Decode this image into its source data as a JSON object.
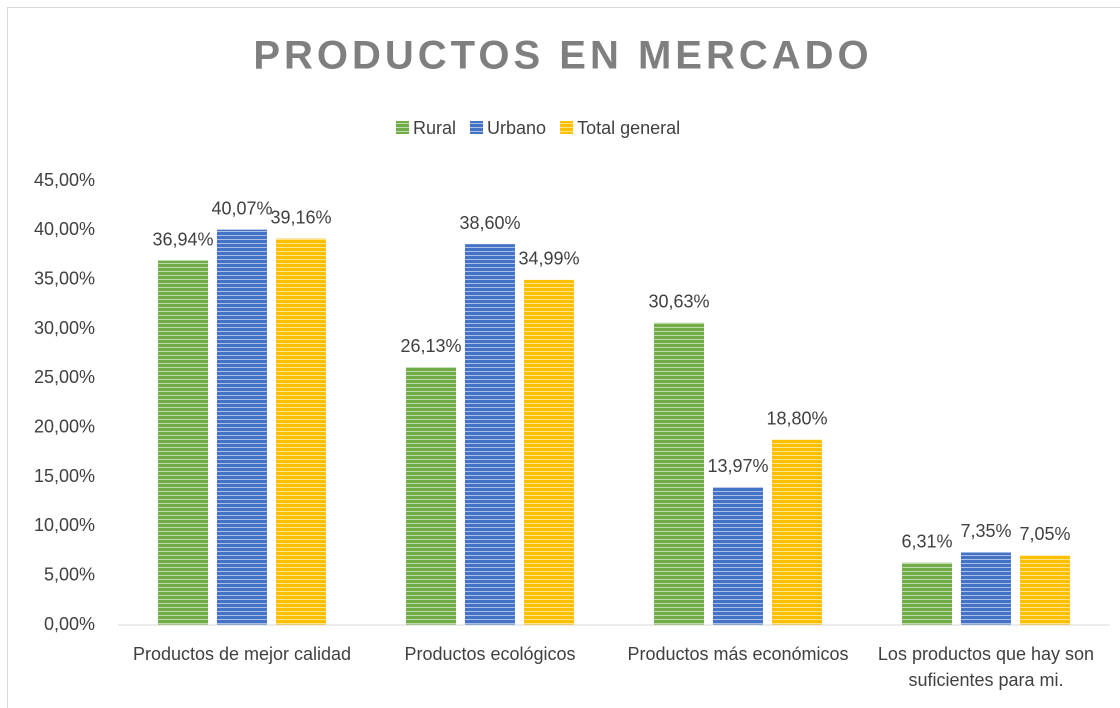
{
  "chart_data": {
    "type": "bar",
    "title": "PRODUCTOS EN MERCADO",
    "categories": [
      "Productos de mejor calidad",
      "Productos ecológicos",
      "Productos más económicos",
      "Los productos que hay son suficientes para mi."
    ],
    "series": [
      {
        "name": "Rural",
        "color": "#70ad47",
        "values": [
          36.94,
          26.13,
          30.63,
          6.31
        ],
        "value_labels": [
          "36,94%",
          "26,13%",
          "30,63%",
          "6,31%"
        ]
      },
      {
        "name": "Urbano",
        "color": "#4472c4",
        "values": [
          40.07,
          38.6,
          13.97,
          7.35
        ],
        "value_labels": [
          "40,07%",
          "38,60%",
          "13,97%",
          "7,35%"
        ]
      },
      {
        "name": "Total general",
        "color": "#ffc000",
        "values": [
          39.16,
          34.99,
          18.8,
          7.05
        ],
        "value_labels": [
          "39,16%",
          "34,99%",
          "18,80%",
          "7,05%"
        ]
      }
    ],
    "ylim": [
      0,
      45
    ],
    "yticks": [
      {
        "value": 0,
        "label": "0,00%"
      },
      {
        "value": 5,
        "label": "5,00%"
      },
      {
        "value": 10,
        "label": "10,00%"
      },
      {
        "value": 15,
        "label": "15,00%"
      },
      {
        "value": 20,
        "label": "20,00%"
      },
      {
        "value": 25,
        "label": "25,00%"
      },
      {
        "value": 30,
        "label": "30,00%"
      },
      {
        "value": 35,
        "label": "35,00%"
      },
      {
        "value": 40,
        "label": "40,00%"
      },
      {
        "value": 45,
        "label": "45,00%"
      }
    ],
    "grid": false,
    "legend": "top"
  }
}
